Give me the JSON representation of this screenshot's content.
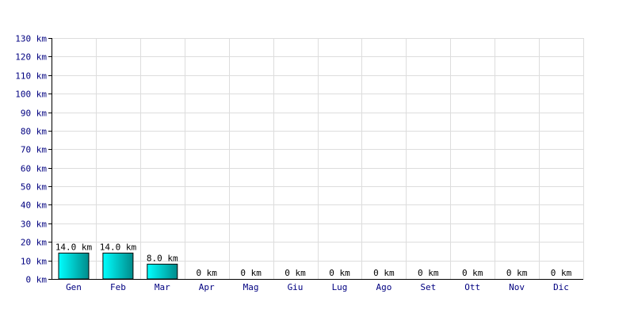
{
  "chart_data": {
    "type": "bar",
    "title": "",
    "xlabel": "",
    "ylabel": "",
    "unit": "km",
    "categories": [
      "Gen",
      "Feb",
      "Mar",
      "Apr",
      "Mag",
      "Giu",
      "Lug",
      "Ago",
      "Set",
      "Ott",
      "Nov",
      "Dic"
    ],
    "values": [
      14.0,
      14.0,
      8.0,
      0,
      0,
      0,
      0,
      0,
      0,
      0,
      0,
      0
    ],
    "data_labels": [
      "14.0 km",
      "14.0 km",
      "8.0 km",
      "0 km",
      "0 km",
      "0 km",
      "0 km",
      "0 km",
      "0 km",
      "0 km",
      "0 km",
      "0 km"
    ],
    "ylim": [
      0,
      130
    ],
    "y_ticks": [
      0,
      10,
      20,
      30,
      40,
      50,
      60,
      70,
      80,
      90,
      100,
      110,
      120,
      130
    ],
    "y_tick_labels": [
      "0 km",
      "10 km",
      "20 km",
      "30 km",
      "40 km",
      "50 km",
      "60 km",
      "70 km",
      "80 km",
      "90 km",
      "100 km",
      "110 km",
      "120 km",
      "130 km"
    ],
    "grid": true,
    "legend": "none",
    "colors": {
      "bar_light": "#00ffff",
      "bar_dark": "#008b8b",
      "bar_border": "#000000",
      "grid": "#dddddd",
      "axis_text": "#000080"
    }
  }
}
